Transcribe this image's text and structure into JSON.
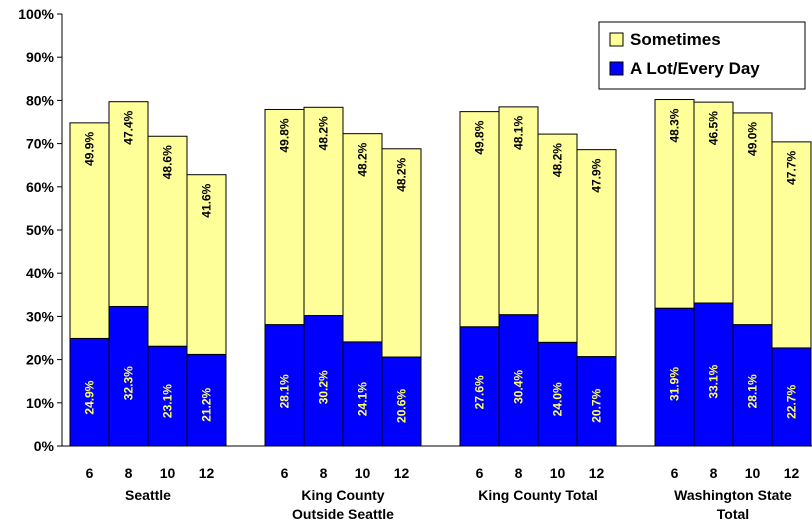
{
  "chart_data": {
    "type": "bar",
    "stacked": true,
    "title": "",
    "xlabel": "",
    "ylabel": "",
    "ylim": [
      0,
      100
    ],
    "y_ticks": [
      "0%",
      "10%",
      "20%",
      "30%",
      "40%",
      "50%",
      "60%",
      "70%",
      "80%",
      "90%",
      "100%"
    ],
    "legend_placement": "top-right",
    "grid": false,
    "groups": [
      {
        "name": "Seattle",
        "name_lines": [
          "Seattle"
        ],
        "categories": [
          "6",
          "8",
          "10",
          "12"
        ]
      },
      {
        "name": "King County Outside Seattle",
        "name_lines": [
          "King County",
          "Outside Seattle"
        ],
        "categories": [
          "6",
          "8",
          "10",
          "12"
        ]
      },
      {
        "name": "King County Total",
        "name_lines": [
          "King County Total"
        ],
        "categories": [
          "6",
          "8",
          "10",
          "12"
        ]
      },
      {
        "name": "Washington State Total",
        "name_lines": [
          "Washington State",
          "Total"
        ],
        "categories": [
          "6",
          "8",
          "10",
          "12"
        ]
      }
    ],
    "series": [
      {
        "name": "A Lot/Every Day",
        "color": "#0000ff",
        "label_color": "#ffff66",
        "values": [
          [
            24.9,
            32.3,
            23.1,
            21.2
          ],
          [
            28.1,
            30.2,
            24.1,
            20.6
          ],
          [
            27.6,
            30.4,
            24.0,
            20.7
          ],
          [
            31.9,
            33.1,
            28.1,
            22.7
          ]
        ],
        "labels": [
          [
            "24.9%",
            "32.3%",
            "23.1%",
            "21.2%"
          ],
          [
            "28.1%",
            "30.2%",
            "24.1%",
            "20.6%"
          ],
          [
            "27.6%",
            "30.4%",
            "24.0%",
            "20.7%"
          ],
          [
            "31.9%",
            "33.1%",
            "28.1%",
            "22.7%"
          ]
        ]
      },
      {
        "name": "Sometimes",
        "color": "#ffff99",
        "label_color": "#000000",
        "values": [
          [
            49.9,
            47.4,
            48.6,
            41.6
          ],
          [
            49.8,
            48.2,
            48.2,
            48.2
          ],
          [
            49.8,
            48.1,
            48.2,
            47.9
          ],
          [
            48.3,
            46.5,
            49.0,
            47.7
          ]
        ],
        "labels": [
          [
            "49.9%",
            "47.4%",
            "48.6%",
            "41.6%"
          ],
          [
            "49.8%",
            "48.2%",
            "48.2%",
            "48.2%"
          ],
          [
            "49.8%",
            "48.1%",
            "48.2%",
            "47.9%"
          ],
          [
            "48.3%",
            "46.5%",
            "49.0%",
            "47.7%"
          ]
        ]
      }
    ],
    "legend": [
      {
        "label": "Sometimes",
        "color": "#ffff99"
      },
      {
        "label": "A Lot/Every Day",
        "color": "#0000ff"
      }
    ]
  }
}
